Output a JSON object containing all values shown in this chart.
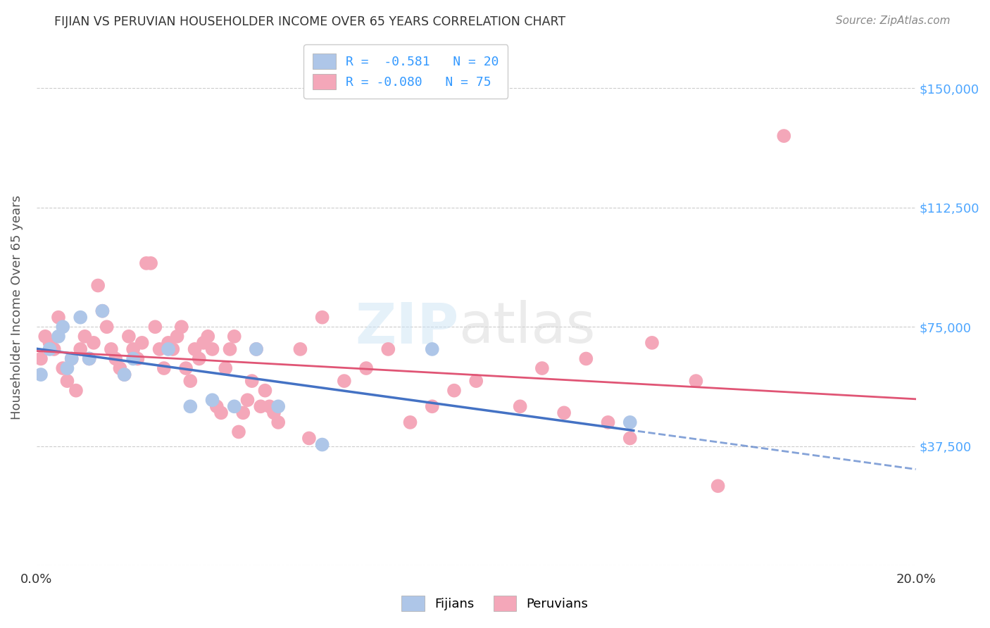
{
  "title": "FIJIAN VS PERUVIAN HOUSEHOLDER INCOME OVER 65 YEARS CORRELATION CHART",
  "source": "Source: ZipAtlas.com",
  "ylabel": "Householder Income Over 65 years",
  "xlim": [
    0.0,
    0.2
  ],
  "ylim": [
    0,
    162500
  ],
  "watermark_zip": "ZIP",
  "watermark_atlas": "atlas",
  "legend_entries": [
    {
      "label": "R =  -0.581   N = 20",
      "color": "#aec6e8"
    },
    {
      "label": "R = -0.080   N = 75",
      "color": "#f4a7b9"
    }
  ],
  "fijian_color": "#aec6e8",
  "peruvian_color": "#f4a7b9",
  "fijian_line_color": "#4472c4",
  "peruvian_line_color": "#e05575",
  "fijian_scatter": [
    [
      0.001,
      60000
    ],
    [
      0.003,
      68000
    ],
    [
      0.005,
      72000
    ],
    [
      0.006,
      75000
    ],
    [
      0.007,
      62000
    ],
    [
      0.008,
      65000
    ],
    [
      0.01,
      78000
    ],
    [
      0.012,
      65000
    ],
    [
      0.015,
      80000
    ],
    [
      0.02,
      60000
    ],
    [
      0.022,
      65000
    ],
    [
      0.03,
      68000
    ],
    [
      0.035,
      50000
    ],
    [
      0.04,
      52000
    ],
    [
      0.045,
      50000
    ],
    [
      0.05,
      68000
    ],
    [
      0.055,
      50000
    ],
    [
      0.065,
      38000
    ],
    [
      0.09,
      68000
    ],
    [
      0.135,
      45000
    ]
  ],
  "peruvian_scatter": [
    [
      0.001,
      65000
    ],
    [
      0.002,
      72000
    ],
    [
      0.003,
      70000
    ],
    [
      0.004,
      68000
    ],
    [
      0.005,
      78000
    ],
    [
      0.006,
      62000
    ],
    [
      0.007,
      58000
    ],
    [
      0.008,
      65000
    ],
    [
      0.009,
      55000
    ],
    [
      0.01,
      68000
    ],
    [
      0.011,
      72000
    ],
    [
      0.012,
      65000
    ],
    [
      0.013,
      70000
    ],
    [
      0.014,
      88000
    ],
    [
      0.015,
      80000
    ],
    [
      0.016,
      75000
    ],
    [
      0.017,
      68000
    ],
    [
      0.018,
      65000
    ],
    [
      0.019,
      62000
    ],
    [
      0.02,
      60000
    ],
    [
      0.021,
      72000
    ],
    [
      0.022,
      68000
    ],
    [
      0.023,
      65000
    ],
    [
      0.024,
      70000
    ],
    [
      0.025,
      95000
    ],
    [
      0.026,
      95000
    ],
    [
      0.027,
      75000
    ],
    [
      0.028,
      68000
    ],
    [
      0.029,
      62000
    ],
    [
      0.03,
      70000
    ],
    [
      0.031,
      68000
    ],
    [
      0.032,
      72000
    ],
    [
      0.033,
      75000
    ],
    [
      0.034,
      62000
    ],
    [
      0.035,
      58000
    ],
    [
      0.036,
      68000
    ],
    [
      0.037,
      65000
    ],
    [
      0.038,
      70000
    ],
    [
      0.039,
      72000
    ],
    [
      0.04,
      68000
    ],
    [
      0.041,
      50000
    ],
    [
      0.042,
      48000
    ],
    [
      0.043,
      62000
    ],
    [
      0.044,
      68000
    ],
    [
      0.045,
      72000
    ],
    [
      0.046,
      42000
    ],
    [
      0.047,
      48000
    ],
    [
      0.048,
      52000
    ],
    [
      0.049,
      58000
    ],
    [
      0.05,
      68000
    ],
    [
      0.051,
      50000
    ],
    [
      0.052,
      55000
    ],
    [
      0.053,
      50000
    ],
    [
      0.054,
      48000
    ],
    [
      0.055,
      45000
    ],
    [
      0.06,
      68000
    ],
    [
      0.062,
      40000
    ],
    [
      0.065,
      78000
    ],
    [
      0.07,
      58000
    ],
    [
      0.075,
      62000
    ],
    [
      0.08,
      68000
    ],
    [
      0.085,
      45000
    ],
    [
      0.09,
      50000
    ],
    [
      0.095,
      55000
    ],
    [
      0.1,
      58000
    ],
    [
      0.11,
      50000
    ],
    [
      0.115,
      62000
    ],
    [
      0.12,
      48000
    ],
    [
      0.125,
      65000
    ],
    [
      0.13,
      45000
    ],
    [
      0.135,
      40000
    ],
    [
      0.14,
      70000
    ],
    [
      0.15,
      58000
    ],
    [
      0.155,
      25000
    ],
    [
      0.17,
      135000
    ]
  ],
  "background_color": "#ffffff",
  "grid_color": "#cccccc",
  "title_color": "#333333",
  "right_tick_color": "#4da6ff"
}
